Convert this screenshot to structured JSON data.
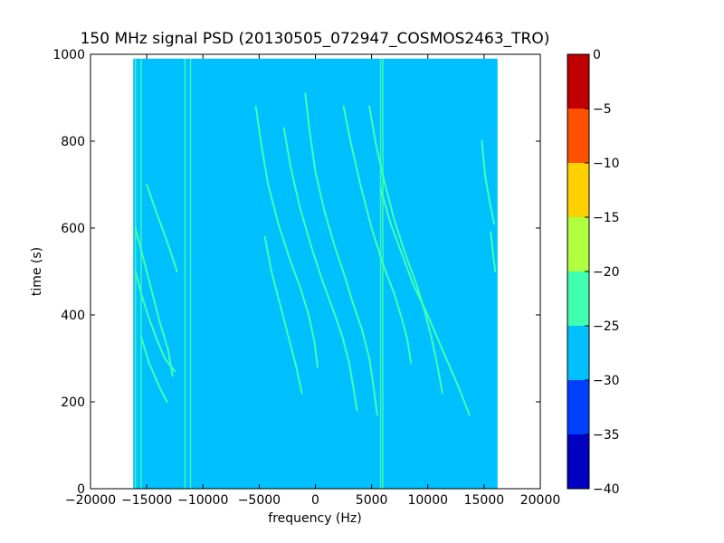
{
  "chart_data": {
    "type": "heatmap",
    "title": "150 MHz signal PSD (20130505_072947_COSMOS2463_TRO)",
    "xlabel": "frequency (Hz)",
    "ylabel": "time (s)",
    "xlim": [
      -20000,
      20000
    ],
    "ylim": [
      0,
      1000
    ],
    "xticks": [
      -20000,
      -15000,
      -10000,
      -5000,
      0,
      5000,
      10000,
      15000,
      20000
    ],
    "xtick_labels": [
      "−20000",
      "−15000",
      "−10000",
      "−5000",
      "0",
      "5000",
      "10000",
      "15000",
      "20000"
    ],
    "yticks": [
      0,
      200,
      400,
      600,
      800,
      1000
    ],
    "ytick_labels": [
      "0",
      "200",
      "400",
      "600",
      "800",
      "1000"
    ],
    "grid": false,
    "data_extent_x": [
      -16200,
      16200
    ],
    "data_extent_y": [
      0,
      990
    ],
    "background_level": -27.5,
    "colorbar": {
      "levels": [
        -40,
        -35,
        -30,
        -25,
        -20,
        -15,
        -10,
        -5,
        0
      ],
      "tick_labels": [
        "−40",
        "−35",
        "−30",
        "−25",
        "−20",
        "−15",
        "−10",
        "−5",
        "0"
      ],
      "colors": [
        "#0000c0",
        "#0040ff",
        "#00c0ff",
        "#40ffb0",
        "#b0ff40",
        "#ffd000",
        "#ff5000",
        "#c00000"
      ]
    },
    "vertical_lines": [
      {
        "freq": -16000,
        "level": -22.5
      },
      {
        "freq": -15500,
        "level": -22.5
      },
      {
        "freq": -11600,
        "level": -22.5
      },
      {
        "freq": -11100,
        "level": -25
      },
      {
        "freq": 5800,
        "level": -25
      },
      {
        "freq": 6000,
        "level": -22.5
      }
    ],
    "traces": [
      {
        "level": -22.5,
        "points": [
          [
            -900,
            910
          ],
          [
            -500,
            820
          ],
          [
            0,
            730
          ],
          [
            800,
            640
          ],
          [
            1700,
            560
          ],
          [
            2600,
            490
          ],
          [
            3300,
            430
          ],
          [
            4100,
            370
          ],
          [
            4800,
            300
          ],
          [
            5200,
            230
          ],
          [
            5500,
            170
          ]
        ]
      },
      {
        "level": -22.5,
        "points": [
          [
            2500,
            880
          ],
          [
            3200,
            790
          ],
          [
            4000,
            700
          ],
          [
            5000,
            600
          ],
          [
            6100,
            510
          ],
          [
            7000,
            450
          ],
          [
            7700,
            390
          ],
          [
            8200,
            340
          ],
          [
            8500,
            290
          ]
        ]
      },
      {
        "level": -22.5,
        "points": [
          [
            4800,
            880
          ],
          [
            5400,
            790
          ],
          [
            6200,
            700
          ],
          [
            7000,
            620
          ],
          [
            8000,
            540
          ],
          [
            9000,
            470
          ],
          [
            9700,
            410
          ],
          [
            10300,
            350
          ],
          [
            10800,
            290
          ],
          [
            11300,
            220
          ]
        ]
      },
      {
        "level": -22.5,
        "points": [
          [
            -5300,
            880
          ],
          [
            -4800,
            790
          ],
          [
            -4200,
            700
          ],
          [
            -3300,
            610
          ],
          [
            -2300,
            530
          ],
          [
            -1300,
            460
          ],
          [
            -600,
            400
          ],
          [
            -100,
            340
          ],
          [
            200,
            280
          ]
        ]
      },
      {
        "level": -25,
        "points": [
          [
            -2800,
            830
          ],
          [
            -2200,
            740
          ],
          [
            -1400,
            650
          ],
          [
            -400,
            560
          ],
          [
            600,
            480
          ],
          [
            1600,
            410
          ],
          [
            2400,
            350
          ],
          [
            3000,
            290
          ],
          [
            3400,
            230
          ],
          [
            3700,
            180
          ]
        ]
      },
      {
        "level": -25,
        "points": [
          [
            5800,
            690
          ],
          [
            6700,
            610
          ],
          [
            7700,
            540
          ],
          [
            8700,
            470
          ],
          [
            9800,
            410
          ],
          [
            10800,
            350
          ],
          [
            11800,
            290
          ],
          [
            12800,
            230
          ],
          [
            13700,
            170
          ]
        ]
      },
      {
        "level": -25,
        "points": [
          [
            -4500,
            580
          ],
          [
            -3900,
            500
          ],
          [
            -3200,
            430
          ],
          [
            -2400,
            350
          ],
          [
            -1700,
            280
          ],
          [
            -1200,
            220
          ]
        ]
      },
      {
        "level": -22.5,
        "points": [
          [
            -16000,
            500
          ],
          [
            -15500,
            450
          ],
          [
            -14900,
            400
          ],
          [
            -14200,
            350
          ],
          [
            -13400,
            300
          ],
          [
            -12500,
            270
          ]
        ]
      },
      {
        "level": -25,
        "points": [
          [
            -16000,
            600
          ],
          [
            -15200,
            520
          ],
          [
            -14500,
            450
          ],
          [
            -13800,
            380
          ],
          [
            -13100,
            320
          ],
          [
            -12700,
            260
          ]
        ]
      },
      {
        "level": -25,
        "points": [
          [
            -15500,
            350
          ],
          [
            -14800,
            290
          ],
          [
            -13800,
            230
          ],
          [
            -13200,
            200
          ]
        ]
      },
      {
        "level": -25,
        "points": [
          [
            -15000,
            700
          ],
          [
            -14200,
            640
          ],
          [
            -13200,
            570
          ],
          [
            -12300,
            500
          ]
        ]
      },
      {
        "level": -25,
        "points": [
          [
            14800,
            800
          ],
          [
            15100,
            720
          ],
          [
            15500,
            660
          ],
          [
            15900,
            610
          ]
        ]
      },
      {
        "level": -22.5,
        "points": [
          [
            15600,
            590
          ],
          [
            15800,
            540
          ],
          [
            16000,
            500
          ]
        ]
      }
    ]
  }
}
